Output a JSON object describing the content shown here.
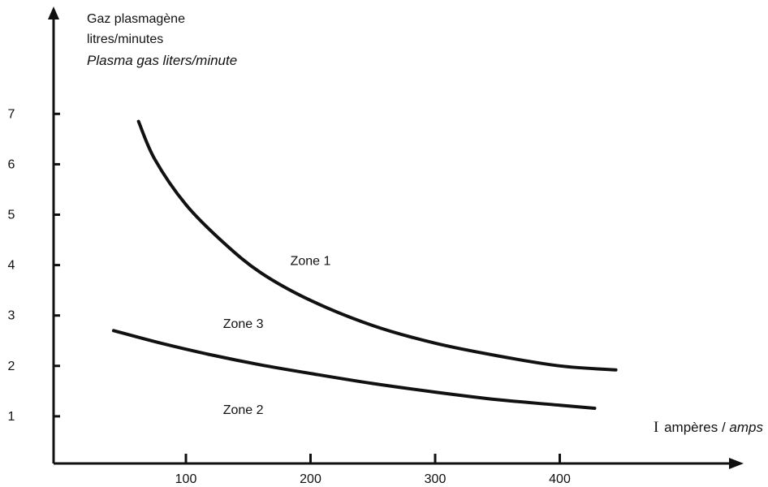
{
  "chart_data": {
    "type": "line",
    "ylabel": {
      "fr_line1": "Gaz plasmagène",
      "fr_line2": "litres/minutes",
      "en": "Plasma gas liters/minute"
    },
    "xlabel": {
      "symbol": "I",
      "fr": "ampères /",
      "en": "amps"
    },
    "x_ticks": [
      100,
      200,
      300,
      400
    ],
    "y_ticks": [
      1,
      2,
      3,
      4,
      5,
      6,
      7
    ],
    "xlim": [
      -10,
      460
    ],
    "ylim": [
      0,
      7.2
    ],
    "grid": false,
    "series": [
      {
        "id": "upper-boundary",
        "points": [
          [
            62,
            6.85
          ],
          [
            75,
            6.1
          ],
          [
            100,
            5.2
          ],
          [
            130,
            4.45
          ],
          [
            160,
            3.85
          ],
          [
            200,
            3.3
          ],
          [
            250,
            2.8
          ],
          [
            300,
            2.45
          ],
          [
            350,
            2.2
          ],
          [
            400,
            2.0
          ],
          [
            445,
            1.92
          ]
        ]
      },
      {
        "id": "lower-boundary",
        "points": [
          [
            42,
            2.7
          ],
          [
            80,
            2.45
          ],
          [
            120,
            2.22
          ],
          [
            160,
            2.02
          ],
          [
            200,
            1.85
          ],
          [
            250,
            1.65
          ],
          [
            300,
            1.48
          ],
          [
            350,
            1.33
          ],
          [
            400,
            1.22
          ],
          [
            428,
            1.16
          ]
        ]
      }
    ],
    "annotations": [
      {
        "text": "Zone 1",
        "x": 200,
        "y": 4.0
      },
      {
        "text": "Zone 3",
        "x": 146,
        "y": 2.75
      },
      {
        "text": "Zone 2",
        "x": 146,
        "y": 1.05
      }
    ]
  }
}
